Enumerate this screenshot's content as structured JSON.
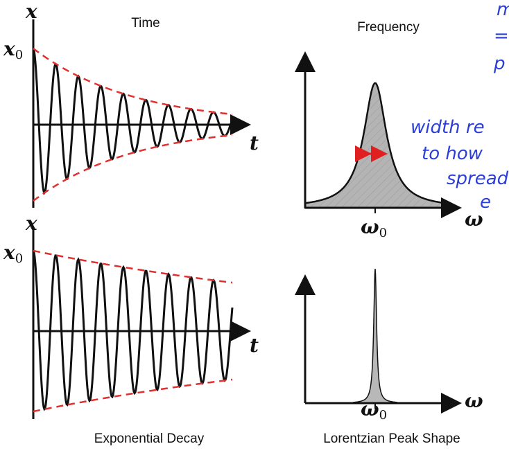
{
  "captions": {
    "time": "Time",
    "frequency": "Frequency",
    "exp_decay": "Exponential Decay",
    "lorentzian": "Lorentzian Peak Shape"
  },
  "symbols": {
    "x": "x",
    "x0": "x",
    "x0_sub": "0",
    "t": "t",
    "omega": "ω",
    "omega0": "ω",
    "omega0_sub": "0"
  },
  "annotations": [
    "m",
    "=",
    "p",
    "width re",
    "to how",
    "spread",
    "e"
  ],
  "colors": {
    "envelope": "#e03030",
    "signal": "#111111",
    "peak_fill": "#b0b0b0",
    "width_arrow": "#e02020",
    "handwriting": "#2b3fd6"
  }
}
